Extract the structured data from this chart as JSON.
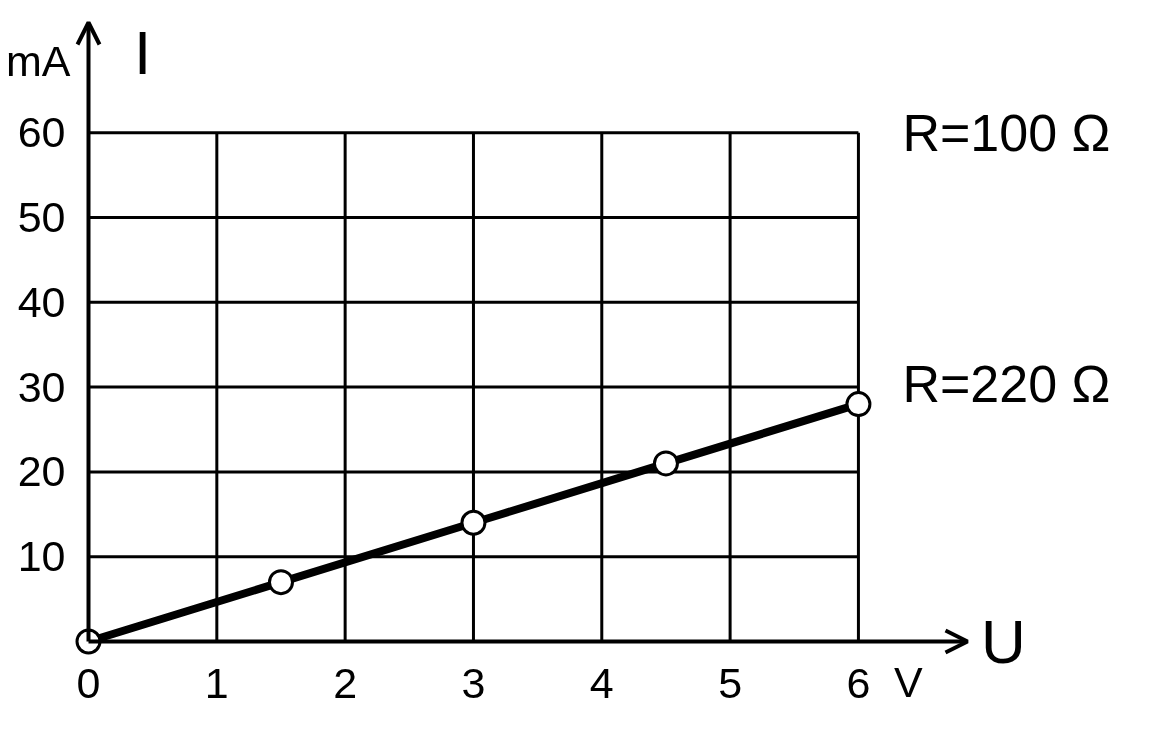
{
  "chart_data": {
    "type": "line",
    "xlabel": "U",
    "ylabel": "I",
    "x": [
      0,
      1.5,
      3,
      4.5,
      6
    ],
    "series": [
      {
        "name": "R=220 Ω",
        "color": "#000000",
        "values": [
          0,
          7,
          14,
          21,
          28
        ]
      }
    ],
    "xlim": [
      0,
      6.85
    ],
    "ylim": [
      0,
      73
    ],
    "xticks": [
      0,
      1,
      2,
      3,
      4,
      5,
      6
    ],
    "yticks": [
      {
        "value": 0,
        "label": null
      },
      10,
      20,
      30,
      40,
      50,
      60
    ],
    "grid": true,
    "marker": "circle",
    "line_style": "solid",
    "annotations": [
      "R=100 Ω",
      "mA",
      "V"
    ]
  }
}
